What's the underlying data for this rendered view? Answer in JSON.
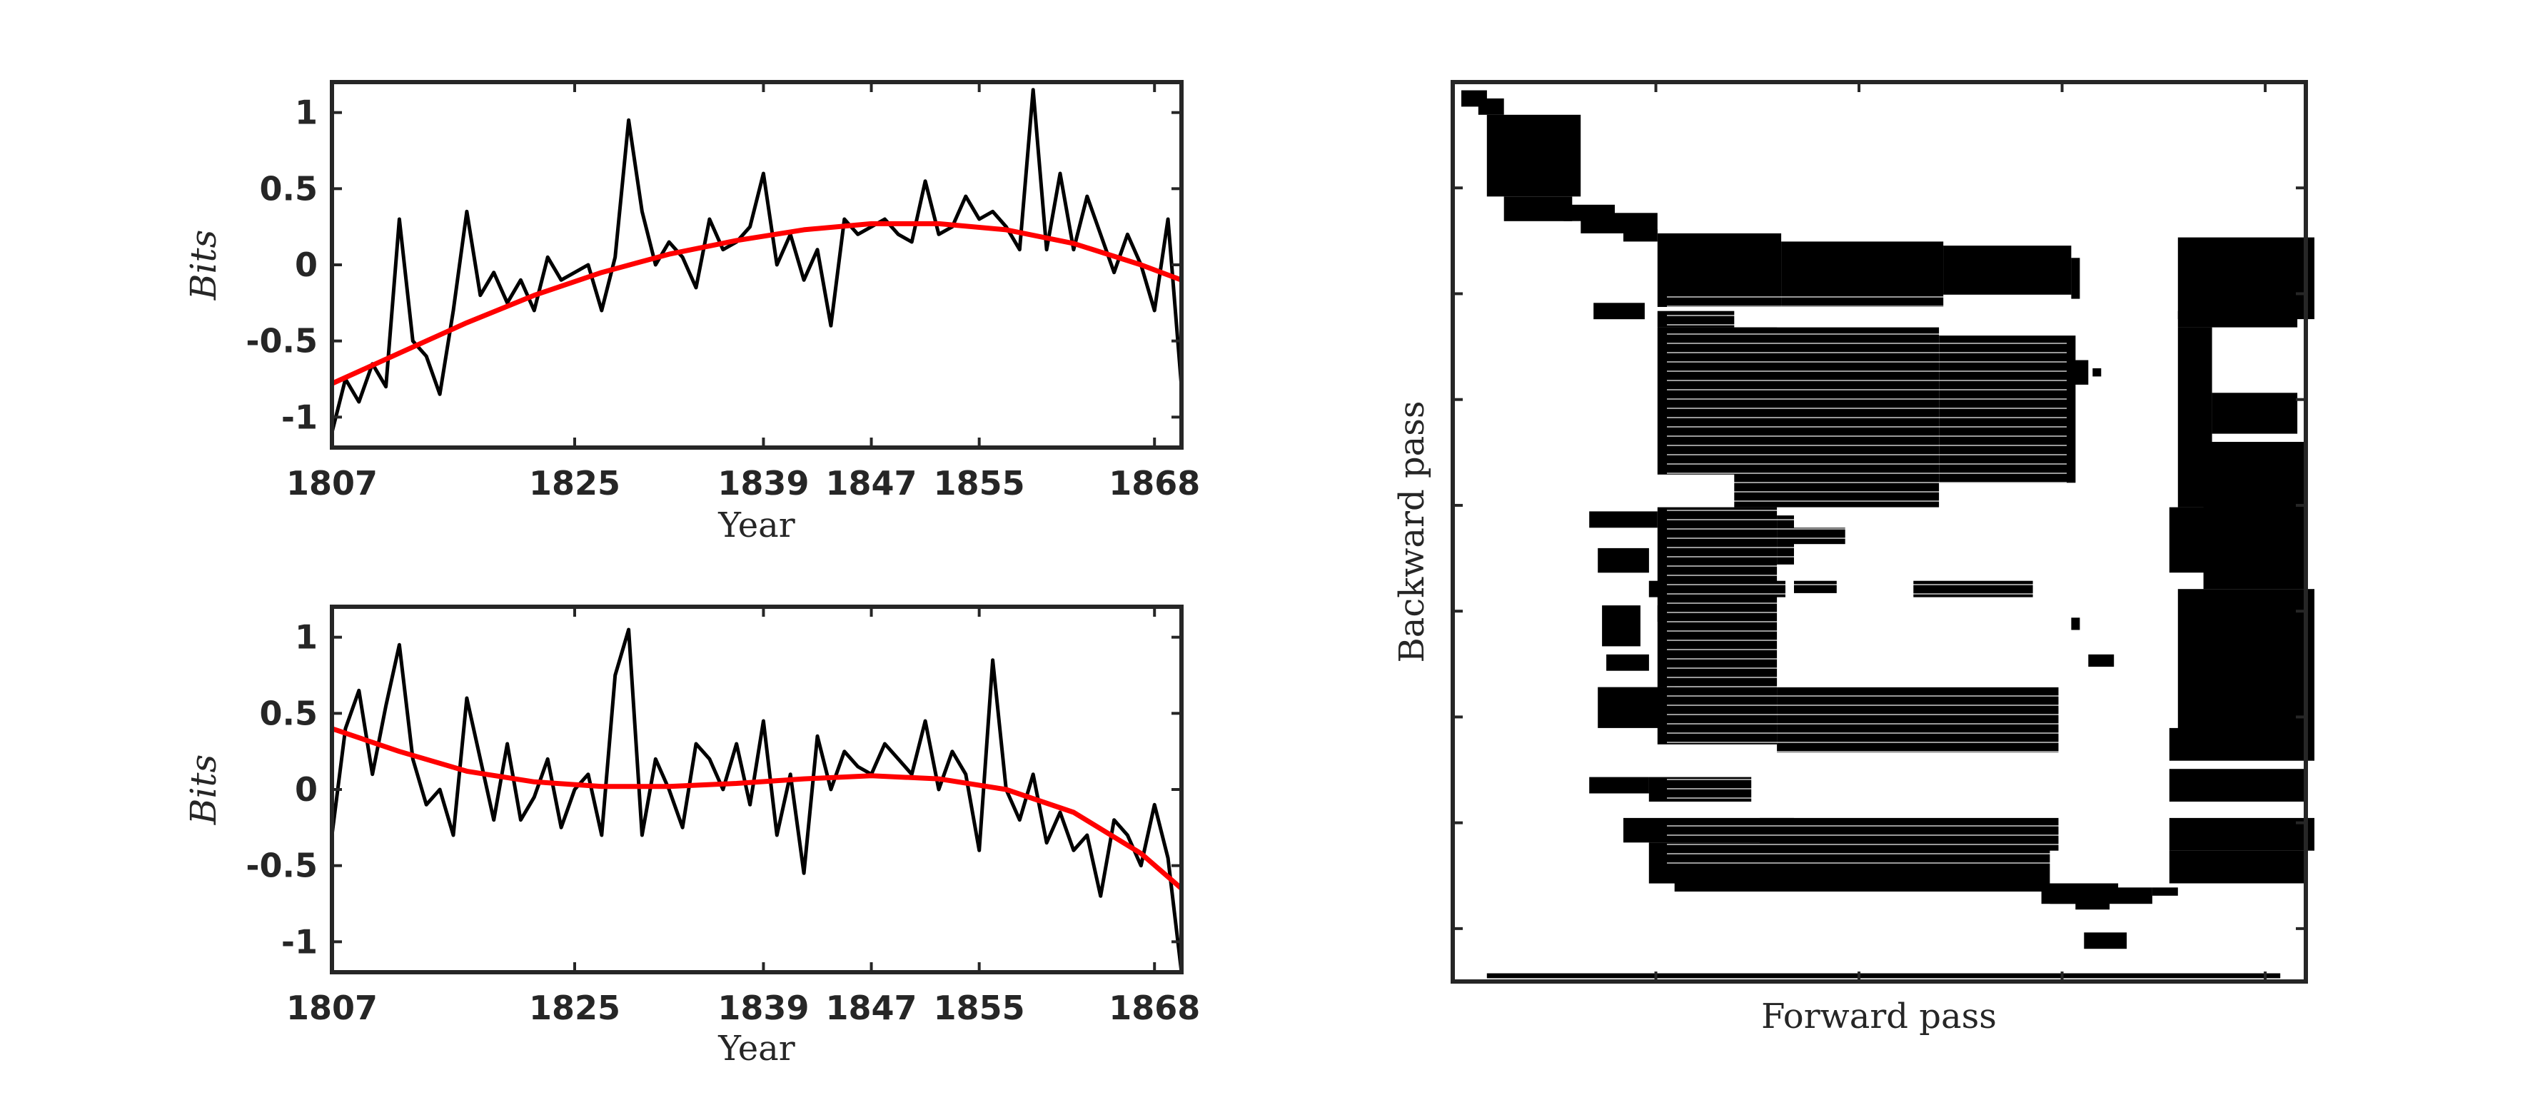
{
  "chart_data": [
    {
      "type": "line",
      "xlabel": "Year",
      "ylabel": "Bits",
      "xticks": [
        "1807",
        "1825",
        "1839",
        "1847",
        "1855",
        "1868"
      ],
      "yticks": [
        "1",
        "0.5",
        "0",
        "-0.5",
        "-1"
      ],
      "xlim": [
        1807,
        1870
      ],
      "ylim": [
        -1.2,
        1.2
      ],
      "series": [
        {
          "color": "#000000",
          "x": [
            1807,
            1808,
            1809,
            1810,
            1811,
            1812,
            1813,
            1814,
            1815,
            1816,
            1817,
            1818,
            1819,
            1820,
            1821,
            1822,
            1823,
            1824,
            1825,
            1826,
            1827,
            1828,
            1829,
            1830,
            1831,
            1832,
            1833,
            1834,
            1835,
            1836,
            1837,
            1838,
            1839,
            1840,
            1841,
            1842,
            1843,
            1844,
            1845,
            1846,
            1847,
            1848,
            1849,
            1850,
            1851,
            1852,
            1853,
            1854,
            1855,
            1856,
            1857,
            1858,
            1859,
            1860,
            1861,
            1862,
            1863,
            1864,
            1865,
            1866,
            1867,
            1868,
            1869,
            1870
          ],
          "y": [
            -1.1,
            -0.75,
            -0.9,
            -0.65,
            -0.8,
            0.3,
            -0.5,
            -0.6,
            -0.85,
            -0.3,
            0.35,
            -0.2,
            -0.05,
            -0.25,
            -0.1,
            -0.3,
            0.05,
            -0.1,
            -0.05,
            0.0,
            -0.3,
            0.05,
            0.95,
            0.35,
            0.0,
            0.15,
            0.05,
            -0.15,
            0.3,
            0.1,
            0.15,
            0.25,
            0.6,
            0.0,
            0.2,
            -0.1,
            0.1,
            -0.4,
            0.3,
            0.2,
            0.25,
            0.3,
            0.2,
            0.15,
            0.55,
            0.2,
            0.25,
            0.45,
            0.3,
            0.35,
            0.25,
            0.1,
            1.15,
            0.1,
            0.6,
            0.1,
            0.45,
            0.2,
            -0.05,
            0.2,
            0.0,
            -0.3,
            0.3,
            -0.8
          ]
        },
        {
          "color": "#ff0000",
          "x": [
            1807,
            1812,
            1817,
            1822,
            1827,
            1832,
            1837,
            1842,
            1847,
            1852,
            1857,
            1862,
            1867,
            1870
          ],
          "y": [
            -0.78,
            -0.58,
            -0.38,
            -0.2,
            -0.05,
            0.07,
            0.16,
            0.23,
            0.27,
            0.27,
            0.23,
            0.14,
            0.0,
            -0.1
          ]
        }
      ]
    },
    {
      "type": "line",
      "xlabel": "Year",
      "ylabel": "Bits",
      "xticks": [
        "1807",
        "1825",
        "1839",
        "1847",
        "1855",
        "1868"
      ],
      "yticks": [
        "1",
        "0.5",
        "0",
        "-0.5",
        "-1"
      ],
      "xlim": [
        1807,
        1870
      ],
      "ylim": [
        -1.2,
        1.2
      ],
      "series": [
        {
          "color": "#000000",
          "x": [
            1807,
            1808,
            1809,
            1810,
            1811,
            1812,
            1813,
            1814,
            1815,
            1816,
            1817,
            1818,
            1819,
            1820,
            1821,
            1822,
            1823,
            1824,
            1825,
            1826,
            1827,
            1828,
            1829,
            1830,
            1831,
            1832,
            1833,
            1834,
            1835,
            1836,
            1837,
            1838,
            1839,
            1840,
            1841,
            1842,
            1843,
            1844,
            1845,
            1846,
            1847,
            1848,
            1849,
            1850,
            1851,
            1852,
            1853,
            1854,
            1855,
            1856,
            1857,
            1858,
            1859,
            1860,
            1861,
            1862,
            1863,
            1864,
            1865,
            1866,
            1867,
            1868,
            1869,
            1870
          ],
          "y": [
            -0.3,
            0.4,
            0.65,
            0.1,
            0.55,
            0.95,
            0.2,
            -0.1,
            0.0,
            -0.3,
            0.6,
            0.2,
            -0.2,
            0.3,
            -0.2,
            -0.05,
            0.2,
            -0.25,
            0.0,
            0.1,
            -0.3,
            0.75,
            1.05,
            -0.3,
            0.2,
            0.0,
            -0.25,
            0.3,
            0.2,
            0.0,
            0.3,
            -0.1,
            0.45,
            -0.3,
            0.1,
            -0.55,
            0.35,
            0.0,
            0.25,
            0.15,
            0.1,
            0.3,
            0.2,
            0.1,
            0.45,
            0.0,
            0.25,
            0.1,
            -0.4,
            0.85,
            0.0,
            -0.2,
            0.1,
            -0.35,
            -0.15,
            -0.4,
            -0.3,
            -0.7,
            -0.2,
            -0.3,
            -0.5,
            -0.1,
            -0.45,
            -1.2
          ]
        },
        {
          "color": "#ff0000",
          "x": [
            1807,
            1812,
            1817,
            1822,
            1827,
            1832,
            1837,
            1842,
            1847,
            1852,
            1857,
            1862,
            1867,
            1870
          ],
          "y": [
            0.4,
            0.25,
            0.12,
            0.05,
            0.02,
            0.02,
            0.04,
            0.07,
            0.09,
            0.07,
            0.0,
            -0.15,
            -0.42,
            -0.65
          ]
        }
      ]
    },
    {
      "type": "heatmap",
      "xlabel": "Forward pass",
      "ylabel": "Backward pass",
      "yticks_count": 8
    }
  ]
}
